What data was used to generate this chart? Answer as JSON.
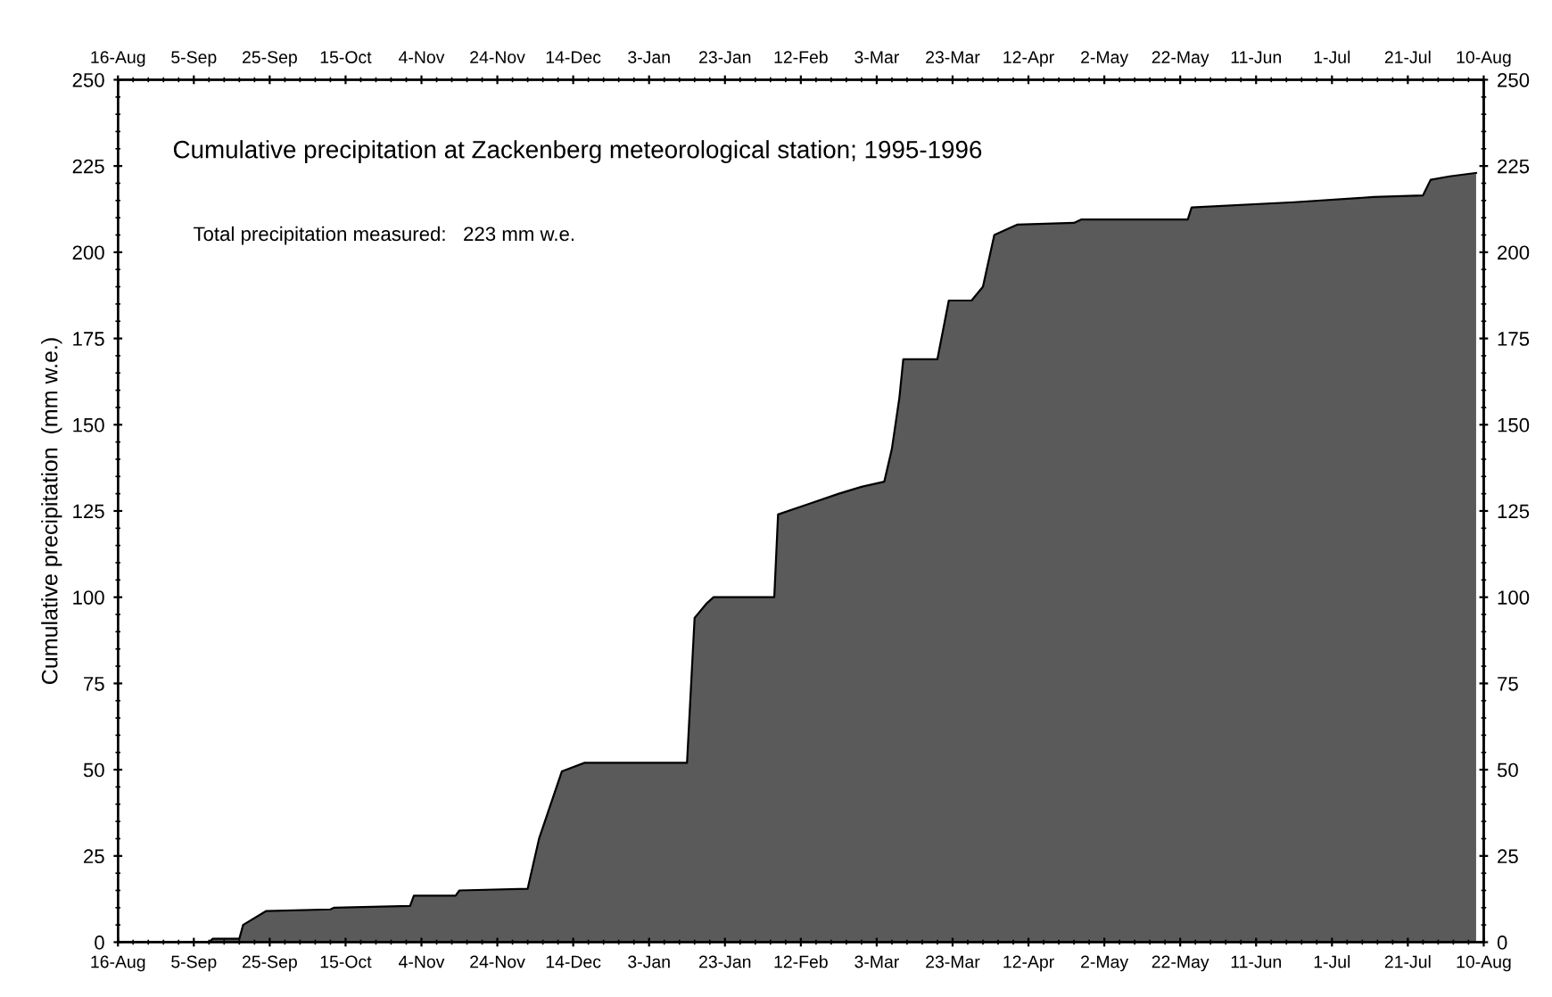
{
  "chart_data": {
    "type": "area",
    "title": "Cumulative precipitation at Zackenberg meteorological station; 1995-1996",
    "ylabel": "Cumulative precipitation  (mm w.e.)",
    "annotations": [
      "Total precipitation measured:   223 mm w.e."
    ],
    "x": [
      "1995-08-16",
      "1995-09-09",
      "1995-09-10",
      "1995-09-17",
      "1995-09-18",
      "1995-09-24",
      "1995-10-11",
      "1995-10-12",
      "1995-11-01",
      "1995-11-02",
      "1995-11-13",
      "1995-11-14",
      "1995-12-02",
      "1995-12-05",
      "1995-12-11",
      "1995-12-17",
      "1996-01-13",
      "1996-01-15",
      "1996-01-18",
      "1996-01-20",
      "1996-02-05",
      "1996-02-06",
      "1996-02-14",
      "1996-02-22",
      "1996-02-28",
      "1996-03-05",
      "1996-03-07",
      "1996-03-09",
      "1996-03-10",
      "1996-03-19",
      "1996-03-22",
      "1996-03-28",
      "1996-03-31",
      "1996-04-03",
      "1996-04-09",
      "1996-04-24",
      "1996-04-26",
      "1996-05-24",
      "1996-05-25",
      "1996-06-21",
      "1996-07-12",
      "1996-07-25",
      "1996-07-27",
      "1996-08-01",
      "1996-08-08"
    ],
    "series": [
      {
        "color": "#5a5a5a",
        "values": [
          0,
          0,
          1,
          1,
          5,
          9,
          9.5,
          10,
          10.5,
          13.5,
          13.5,
          15,
          15.5,
          30,
          49.5,
          52,
          52,
          94,
          98,
          100,
          100,
          124,
          127,
          130,
          132,
          133.5,
          143,
          158,
          169,
          169,
          186,
          186,
          190,
          205,
          208,
          208.5,
          209.5,
          209.5,
          213,
          214.5,
          216,
          216.5,
          221,
          222,
          223
        ]
      }
    ],
    "xlim": [
      "1995-08-16",
      "1996-08-10"
    ],
    "xticks": [
      {
        "value": "1995-08-16",
        "label": "16-Aug"
      },
      {
        "value": "1995-09-05",
        "label": "5-Sep"
      },
      {
        "value": "1995-09-25",
        "label": "25-Sep"
      },
      {
        "value": "1995-10-15",
        "label": "15-Oct"
      },
      {
        "value": "1995-11-04",
        "label": "4-Nov"
      },
      {
        "value": "1995-11-24",
        "label": "24-Nov"
      },
      {
        "value": "1995-12-14",
        "label": "14-Dec"
      },
      {
        "value": "1996-01-03",
        "label": "3-Jan"
      },
      {
        "value": "1996-01-23",
        "label": "23-Jan"
      },
      {
        "value": "1996-02-12",
        "label": "12-Feb"
      },
      {
        "value": "1996-03-03",
        "label": "3-Mar"
      },
      {
        "value": "1996-03-23",
        "label": "23-Mar"
      },
      {
        "value": "1996-04-12",
        "label": "12-Apr"
      },
      {
        "value": "1996-05-02",
        "label": "2-May"
      },
      {
        "value": "1996-05-22",
        "label": "22-May"
      },
      {
        "value": "1996-06-11",
        "label": "11-Jun"
      },
      {
        "value": "1996-07-01",
        "label": "1-Jul"
      },
      {
        "value": "1996-07-21",
        "label": "21-Jul"
      },
      {
        "value": "1996-08-10",
        "label": "10-Aug"
      }
    ],
    "x2lim": [
      "1995-08-16",
      "1996-08-10"
    ],
    "x2ticks": [
      {
        "value": "1995-08-16",
        "label": "16-Aug"
      },
      {
        "value": "1995-09-05",
        "label": "5-Sep"
      },
      {
        "value": "1995-09-25",
        "label": "25-Sep"
      },
      {
        "value": "1995-10-15",
        "label": "15-Oct"
      },
      {
        "value": "1995-11-04",
        "label": "4-Nov"
      },
      {
        "value": "1995-11-24",
        "label": "24-Nov"
      },
      {
        "value": "1995-12-14",
        "label": "14-Dec"
      },
      {
        "value": "1996-01-03",
        "label": "3-Jan"
      },
      {
        "value": "1996-01-23",
        "label": "23-Jan"
      },
      {
        "value": "1996-02-12",
        "label": "12-Feb"
      },
      {
        "value": "1996-03-03",
        "label": "3-Mar"
      },
      {
        "value": "1996-03-23",
        "label": "23-Mar"
      },
      {
        "value": "1996-04-12",
        "label": "12-Apr"
      },
      {
        "value": "1996-05-02",
        "label": "2-May"
      },
      {
        "value": "1996-05-22",
        "label": "22-May"
      },
      {
        "value": "1996-06-11",
        "label": "11-Jun"
      },
      {
        "value": "1996-07-01",
        "label": "1-Jul"
      },
      {
        "value": "1996-07-21",
        "label": "21-Jul"
      },
      {
        "value": "1996-08-10",
        "label": "10-Aug"
      }
    ],
    "ylim": [
      0,
      250
    ],
    "yticks": [
      0,
      25,
      50,
      75,
      100,
      125,
      150,
      175,
      200,
      225,
      250
    ],
    "y2lim": [
      0,
      250
    ],
    "y2ticks": [
      0,
      25,
      50,
      75,
      100,
      125,
      150,
      175,
      200,
      225,
      250
    ],
    "grid": false
  }
}
